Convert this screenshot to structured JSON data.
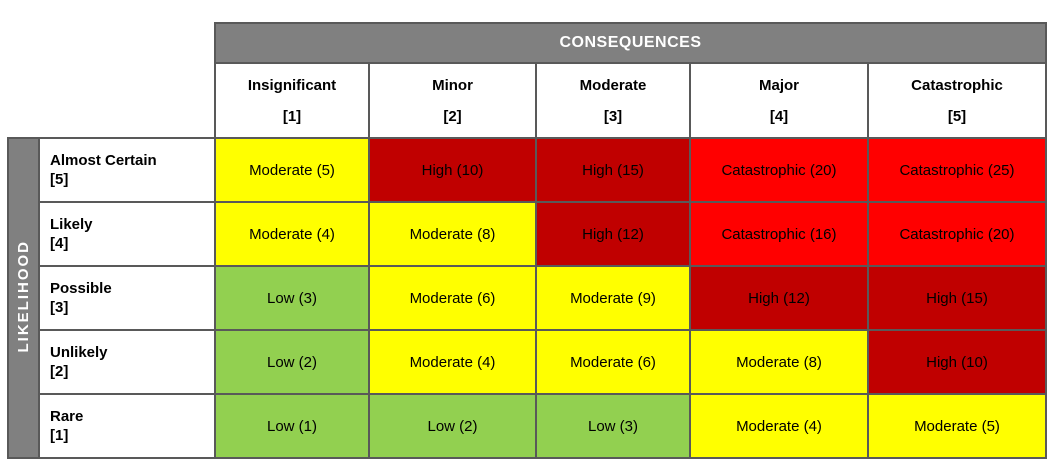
{
  "colors": {
    "header_background": "#808080",
    "header_text": "#FFFFFF",
    "grid_border": "#595959",
    "cell_text": "#000000",
    "page_background": "#FFFFFF"
  },
  "chart_data": {
    "type": "heatmap",
    "x_axis_label": "CONSEQUENCES",
    "y_axis_label": "LIKELIHOOD",
    "columns": [
      {
        "name": "Insignificant",
        "index_label": "[1]"
      },
      {
        "name": "Minor",
        "index_label": "[2]"
      },
      {
        "name": "Moderate",
        "index_label": "[3]"
      },
      {
        "name": "Major",
        "index_label": "[4]"
      },
      {
        "name": "Catastrophic",
        "index_label": "[5]"
      }
    ],
    "rows": [
      {
        "name": "Almost Certain",
        "index_label": "[5]",
        "cells": [
          {
            "label": "Moderate (5)",
            "rating": "Moderate",
            "score": 5,
            "level": "moderate"
          },
          {
            "label": "High (10)",
            "rating": "High",
            "score": 10,
            "level": "high"
          },
          {
            "label": "High (15)",
            "rating": "High",
            "score": 15,
            "level": "high"
          },
          {
            "label": "Catastrophic (20)",
            "rating": "Catastrophic",
            "score": 20,
            "level": "catastrophic"
          },
          {
            "label": "Catastrophic (25)",
            "rating": "Catastrophic",
            "score": 25,
            "level": "catastrophic"
          }
        ]
      },
      {
        "name": "Likely",
        "index_label": "[4]",
        "cells": [
          {
            "label": "Moderate (4)",
            "rating": "Moderate",
            "score": 4,
            "level": "moderate"
          },
          {
            "label": "Moderate (8)",
            "rating": "Moderate",
            "score": 8,
            "level": "moderate"
          },
          {
            "label": "High (12)",
            "rating": "High",
            "score": 12,
            "level": "high"
          },
          {
            "label": "Catastrophic (16)",
            "rating": "Catastrophic",
            "score": 16,
            "level": "catastrophic"
          },
          {
            "label": "Catastrophic (20)",
            "rating": "Catastrophic",
            "score": 20,
            "level": "catastrophic"
          }
        ]
      },
      {
        "name": "Possible",
        "index_label": "[3]",
        "cells": [
          {
            "label": "Low (3)",
            "rating": "Low",
            "score": 3,
            "level": "low"
          },
          {
            "label": "Moderate (6)",
            "rating": "Moderate",
            "score": 6,
            "level": "moderate"
          },
          {
            "label": "Moderate (9)",
            "rating": "Moderate",
            "score": 9,
            "level": "moderate"
          },
          {
            "label": "High (12)",
            "rating": "High",
            "score": 12,
            "level": "high"
          },
          {
            "label": "High (15)",
            "rating": "High",
            "score": 15,
            "level": "high"
          }
        ]
      },
      {
        "name": "Unlikely",
        "index_label": "[2]",
        "cells": [
          {
            "label": "Low (2)",
            "rating": "Low",
            "score": 2,
            "level": "low"
          },
          {
            "label": "Moderate (4)",
            "rating": "Moderate",
            "score": 4,
            "level": "moderate"
          },
          {
            "label": "Moderate (6)",
            "rating": "Moderate",
            "score": 6,
            "level": "moderate"
          },
          {
            "label": "Moderate (8)",
            "rating": "Moderate",
            "score": 8,
            "level": "moderate"
          },
          {
            "label": "High (10)",
            "rating": "High",
            "score": 10,
            "level": "high"
          }
        ]
      },
      {
        "name": "Rare",
        "index_label": "[1]",
        "cells": [
          {
            "label": "Low (1)",
            "rating": "Low",
            "score": 1,
            "level": "low"
          },
          {
            "label": "Low (2)",
            "rating": "Low",
            "score": 2,
            "level": "low"
          },
          {
            "label": "Low (3)",
            "rating": "Low",
            "score": 3,
            "level": "low"
          },
          {
            "label": "Moderate (4)",
            "rating": "Moderate",
            "score": 4,
            "level": "moderate"
          },
          {
            "label": "Moderate (5)",
            "rating": "Moderate",
            "score": 5,
            "level": "moderate"
          }
        ]
      }
    ],
    "levels": {
      "low": "#92D050",
      "moderate": "#FFFF00",
      "high": "#C00000",
      "catastrophic": "#FF0000"
    }
  }
}
